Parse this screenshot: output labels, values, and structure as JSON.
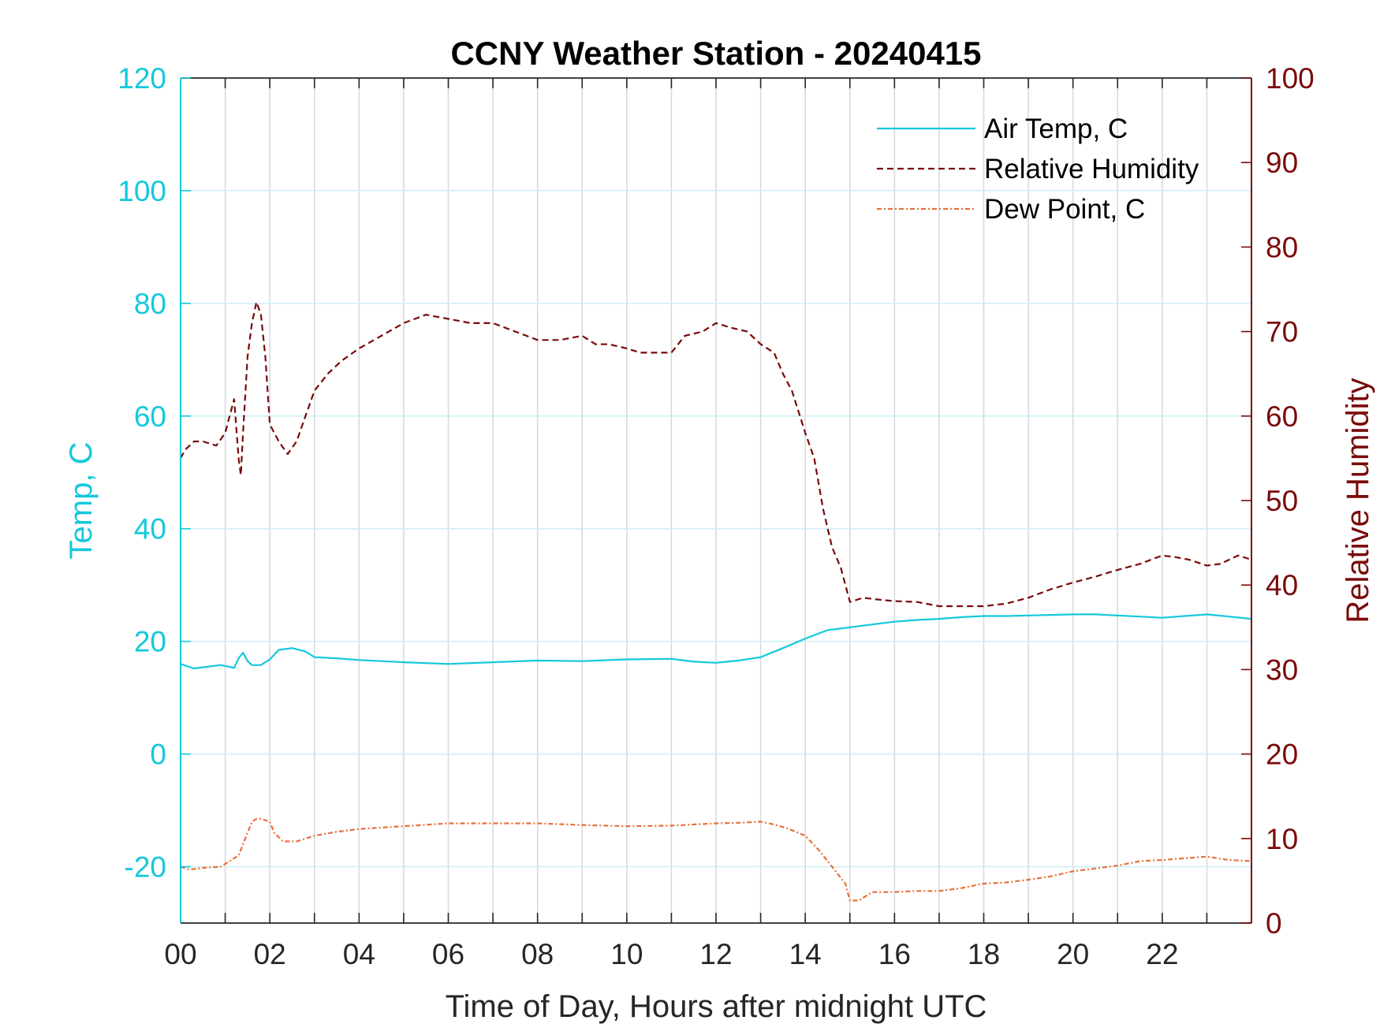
{
  "chart_data": {
    "type": "line",
    "title": "CCNY Weather Station - 20240415",
    "xlabel": "Time of Day, Hours after midnight UTC",
    "ylabel_left": "Temp, C",
    "ylabel_right": "Relative Humidity",
    "xlim": [
      0,
      24
    ],
    "ylim_left": [
      -30,
      120
    ],
    "ylim_right": [
      0,
      100
    ],
    "x_ticks": [
      0,
      2,
      4,
      6,
      8,
      10,
      12,
      14,
      16,
      18,
      20,
      22
    ],
    "x_tick_labels": [
      "00",
      "02",
      "04",
      "06",
      "08",
      "10",
      "12",
      "14",
      "16",
      "18",
      "20",
      "22"
    ],
    "y_left_ticks": [
      -20,
      0,
      20,
      40,
      60,
      80,
      100,
      120
    ],
    "y_left_tick_labels": [
      "-20",
      "0",
      "20",
      "40",
      "60",
      "80",
      "100",
      "120"
    ],
    "y_right_ticks": [
      0,
      10,
      20,
      30,
      40,
      50,
      60,
      70,
      80,
      90,
      100
    ],
    "y_right_tick_labels": [
      "0",
      "10",
      "20",
      "30",
      "40",
      "50",
      "60",
      "70",
      "80",
      "90",
      "100"
    ],
    "grid": true,
    "legend_position": "top-right",
    "colors": {
      "left_axis": "#14c8dc",
      "right_axis": "#7a0a0a",
      "dew_point": "#e8703a",
      "vgrid": "#d4d8de",
      "hgrid": "#cdeef6"
    },
    "series": [
      {
        "name": "Air Temp, C",
        "axis": "left",
        "style": "solid",
        "x": [
          0,
          0.3,
          0.6,
          0.9,
          1.2,
          1.3,
          1.4,
          1.5,
          1.6,
          1.8,
          2.0,
          2.2,
          2.5,
          2.8,
          3.0,
          3.5,
          4.0,
          5.0,
          6.0,
          7.0,
          8.0,
          9.0,
          10.0,
          11.0,
          11.5,
          12.0,
          12.5,
          13.0,
          13.5,
          14.0,
          14.5,
          15.0,
          15.5,
          16.0,
          16.5,
          17.0,
          17.5,
          18.0,
          18.5,
          19.0,
          19.5,
          20.0,
          20.5,
          21.0,
          21.5,
          22.0,
          22.5,
          23.0,
          23.5,
          24.0
        ],
        "y": [
          16,
          15.2,
          15.5,
          15.8,
          15.3,
          17,
          18,
          16.5,
          15.8,
          15.8,
          16.8,
          18.5,
          18.8,
          18.2,
          17.2,
          17,
          16.7,
          16.3,
          16.0,
          16.3,
          16.6,
          16.5,
          16.8,
          16.9,
          16.4,
          16.2,
          16.6,
          17.2,
          18.8,
          20.5,
          22.0,
          22.5,
          23.0,
          23.5,
          23.8,
          24.0,
          24.3,
          24.5,
          24.5,
          24.6,
          24.7,
          24.8,
          24.8,
          24.6,
          24.4,
          24.2,
          24.5,
          24.8,
          24.4,
          24.0
        ]
      },
      {
        "name": "Relative Humidity",
        "axis": "right",
        "style": "dashed",
        "x": [
          0,
          0.1,
          0.3,
          0.5,
          0.8,
          1.0,
          1.1,
          1.2,
          1.3,
          1.35,
          1.4,
          1.5,
          1.6,
          1.7,
          1.8,
          1.9,
          2.0,
          2.1,
          2.2,
          2.4,
          2.6,
          2.8,
          3.0,
          3.3,
          3.6,
          4.0,
          4.5,
          5.0,
          5.5,
          6.0,
          6.5,
          7.0,
          7.5,
          8.0,
          8.5,
          9.0,
          9.3,
          9.6,
          10.0,
          10.3,
          10.6,
          11.0,
          11.3,
          11.7,
          12.0,
          12.3,
          12.7,
          13.0,
          13.3,
          13.5,
          13.7,
          14.0,
          14.2,
          14.4,
          14.6,
          14.8,
          15.0,
          15.3,
          15.6,
          16.0,
          16.5,
          17.0,
          17.5,
          18.0,
          18.5,
          19.0,
          19.5,
          20.0,
          20.5,
          21.0,
          21.5,
          22.0,
          22.3,
          22.6,
          23.0,
          23.3,
          23.7,
          24.0
        ],
        "y": [
          55,
          56,
          57,
          57,
          56.5,
          58,
          60,
          62,
          55,
          53,
          58,
          67,
          71,
          73.5,
          72,
          67,
          59,
          58,
          57,
          55.5,
          57,
          60,
          63,
          65,
          66.5,
          68,
          69.5,
          71,
          72,
          71.5,
          71,
          71,
          70,
          69,
          69,
          69.5,
          68.5,
          68.5,
          68,
          67.5,
          67.5,
          67.5,
          69.5,
          70,
          71,
          70.5,
          70,
          68.5,
          67.5,
          65,
          63,
          58,
          55,
          49,
          44.5,
          42,
          38,
          38.5,
          38.3,
          38.1,
          38,
          37.5,
          37.5,
          37.5,
          37.8,
          38.5,
          39.5,
          40.3,
          41,
          41.8,
          42.5,
          43.5,
          43.3,
          43,
          42.3,
          42.5,
          43.5,
          43
        ]
      },
      {
        "name": "Dew Point, C",
        "axis": "left",
        "style": "dashdot",
        "x": [
          0,
          0.2,
          0.5,
          0.9,
          1.1,
          1.3,
          1.4,
          1.5,
          1.6,
          1.7,
          1.8,
          2.0,
          2.1,
          2.3,
          2.6,
          3.0,
          3.5,
          4.0,
          5.0,
          6.0,
          7.0,
          8.0,
          9.0,
          10.0,
          11.0,
          12.0,
          12.5,
          13.0,
          13.3,
          13.6,
          14.0,
          14.3,
          14.6,
          14.9,
          15.0,
          15.2,
          15.5,
          16.0,
          16.5,
          17.0,
          17.5,
          18.0,
          18.5,
          19.0,
          19.5,
          20.0,
          20.5,
          21.0,
          21.5,
          22.0,
          22.5,
          23.0,
          23.5,
          24.0
        ],
        "y": [
          -20,
          -20.5,
          -20.2,
          -20,
          -19,
          -18,
          -16,
          -14,
          -12,
          -11.5,
          -11.5,
          -12,
          -14,
          -15.5,
          -15.5,
          -14.5,
          -13.8,
          -13.3,
          -12.8,
          -12.3,
          -12.3,
          -12.3,
          -12.6,
          -12.8,
          -12.7,
          -12.3,
          -12.2,
          -12,
          -12.5,
          -13.2,
          -14.5,
          -17,
          -20,
          -23,
          -26,
          -26,
          -24.5,
          -24.5,
          -24.3,
          -24.3,
          -23.8,
          -23,
          -22.8,
          -22.3,
          -21.7,
          -20.8,
          -20.3,
          -19.8,
          -19,
          -18.8,
          -18.5,
          -18.2,
          -18.8,
          -19
        ]
      }
    ]
  }
}
